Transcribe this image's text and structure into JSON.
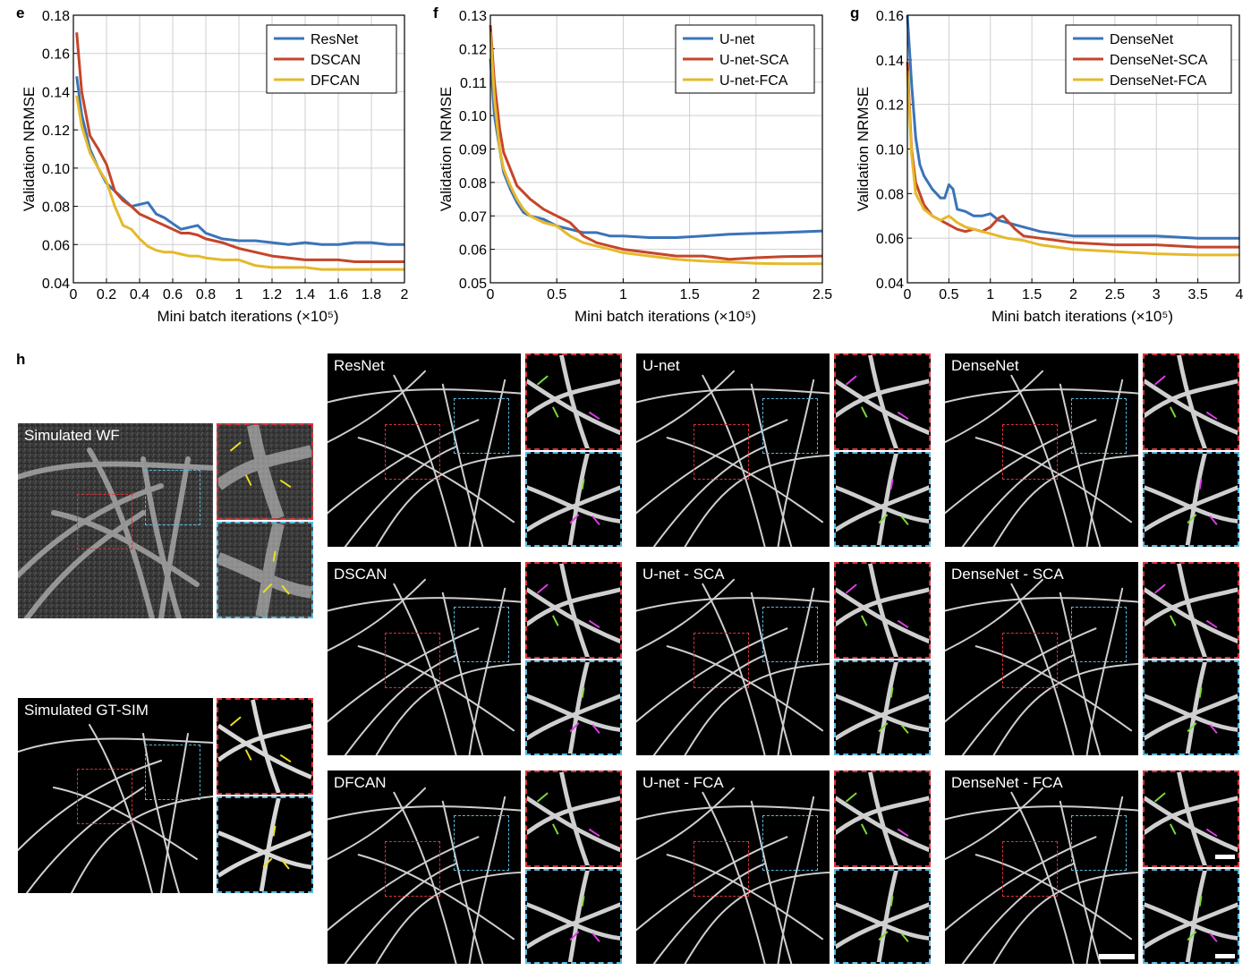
{
  "colors": {
    "blue": "#3a74b8",
    "red": "#c5452a",
    "yellow": "#e6b92b",
    "grid": "#cfcfcf"
  },
  "chart_data": [
    {
      "type": "line",
      "panel": "e",
      "xlabel": "Mini batch iterations (×10⁵)",
      "ylabel": "Validation NRMSE",
      "xlim": [
        0,
        2
      ],
      "ylim": [
        0.04,
        0.18
      ],
      "xticks": [
        0,
        0.2,
        0.4,
        0.6,
        0.8,
        1,
        1.2,
        1.4,
        1.6,
        1.8,
        2
      ],
      "xtick_labels": [
        "0",
        "0.2",
        "0.4",
        "0.6",
        "0.8",
        "1",
        "1.2",
        "1.4",
        "1.6",
        "1.8",
        "2"
      ],
      "yticks": [
        0.04,
        0.06,
        0.08,
        0.1,
        0.12,
        0.14,
        0.16,
        0.18
      ],
      "ytick_labels": [
        "0.04",
        "0.06",
        "0.08",
        "0.10",
        "0.12",
        "0.14",
        "0.16",
        "0.18"
      ],
      "grid": true,
      "legend": "top-right",
      "series": [
        {
          "name": "ResNet",
          "color": "blue",
          "x": [
            0.02,
            0.05,
            0.1,
            0.15,
            0.2,
            0.25,
            0.3,
            0.35,
            0.4,
            0.45,
            0.5,
            0.55,
            0.6,
            0.65,
            0.7,
            0.75,
            0.8,
            0.9,
            1.0,
            1.1,
            1.2,
            1.3,
            1.4,
            1.5,
            1.6,
            1.7,
            1.8,
            1.9,
            2.0
          ],
          "y": [
            0.148,
            0.128,
            0.11,
            0.1,
            0.092,
            0.088,
            0.084,
            0.08,
            0.081,
            0.082,
            0.076,
            0.074,
            0.071,
            0.068,
            0.069,
            0.07,
            0.066,
            0.063,
            0.062,
            0.062,
            0.061,
            0.06,
            0.061,
            0.06,
            0.06,
            0.061,
            0.061,
            0.06,
            0.06
          ]
        },
        {
          "name": "DSCAN",
          "color": "red",
          "x": [
            0.02,
            0.05,
            0.1,
            0.15,
            0.2,
            0.25,
            0.3,
            0.35,
            0.4,
            0.45,
            0.5,
            0.55,
            0.6,
            0.65,
            0.7,
            0.75,
            0.8,
            0.9,
            1.0,
            1.1,
            1.2,
            1.3,
            1.4,
            1.5,
            1.6,
            1.7,
            1.8,
            1.9,
            2.0
          ],
          "y": [
            0.171,
            0.14,
            0.117,
            0.11,
            0.102,
            0.088,
            0.083,
            0.08,
            0.076,
            0.074,
            0.072,
            0.07,
            0.068,
            0.066,
            0.066,
            0.065,
            0.063,
            0.061,
            0.058,
            0.056,
            0.054,
            0.053,
            0.052,
            0.052,
            0.052,
            0.051,
            0.051,
            0.051,
            0.051
          ]
        },
        {
          "name": "DFCAN",
          "color": "yellow",
          "x": [
            0.02,
            0.05,
            0.1,
            0.15,
            0.2,
            0.25,
            0.3,
            0.35,
            0.4,
            0.45,
            0.5,
            0.55,
            0.6,
            0.65,
            0.7,
            0.75,
            0.8,
            0.9,
            1.0,
            1.1,
            1.2,
            1.3,
            1.4,
            1.5,
            1.6,
            1.7,
            1.8,
            1.9,
            2.0
          ],
          "y": [
            0.138,
            0.122,
            0.108,
            0.1,
            0.093,
            0.08,
            0.07,
            0.068,
            0.063,
            0.059,
            0.057,
            0.056,
            0.056,
            0.055,
            0.054,
            0.054,
            0.053,
            0.052,
            0.052,
            0.049,
            0.048,
            0.048,
            0.048,
            0.047,
            0.047,
            0.047,
            0.047,
            0.047,
            0.047
          ]
        }
      ]
    },
    {
      "type": "line",
      "panel": "f",
      "xlabel": "Mini batch iterations (×10⁵)",
      "ylabel": "Validation NRMSE",
      "xlim": [
        0,
        2.5
      ],
      "ylim": [
        0.05,
        0.13
      ],
      "xticks": [
        0,
        0.5,
        1,
        1.5,
        2,
        2.5
      ],
      "xtick_labels": [
        "0",
        "0.5",
        "1",
        "1.5",
        "2",
        "2.5"
      ],
      "yticks": [
        0.05,
        0.06,
        0.07,
        0.08,
        0.09,
        0.1,
        0.11,
        0.12,
        0.13
      ],
      "ytick_labels": [
        "0.05",
        "0.06",
        "0.07",
        "0.08",
        "0.09",
        "0.10",
        "0.11",
        "0.12",
        "0.13"
      ],
      "grid": true,
      "legend": "top-right",
      "series": [
        {
          "name": "U-net",
          "color": "blue",
          "x": [
            0.0,
            0.03,
            0.07,
            0.1,
            0.15,
            0.2,
            0.25,
            0.3,
            0.4,
            0.5,
            0.6,
            0.7,
            0.8,
            0.9,
            1.0,
            1.2,
            1.4,
            1.6,
            1.8,
            2.0,
            2.2,
            2.5
          ],
          "y": [
            0.117,
            0.1,
            0.09,
            0.083,
            0.078,
            0.074,
            0.071,
            0.07,
            0.069,
            0.067,
            0.066,
            0.065,
            0.065,
            0.064,
            0.064,
            0.0635,
            0.0635,
            0.064,
            0.0645,
            0.0648,
            0.065,
            0.0655
          ]
        },
        {
          "name": "U-net-SCA",
          "color": "red",
          "x": [
            0.0,
            0.03,
            0.07,
            0.1,
            0.15,
            0.2,
            0.25,
            0.3,
            0.4,
            0.5,
            0.55,
            0.6,
            0.7,
            0.8,
            0.9,
            1.0,
            1.2,
            1.4,
            1.6,
            1.8,
            2.0,
            2.2,
            2.5
          ],
          "y": [
            0.127,
            0.11,
            0.096,
            0.089,
            0.084,
            0.079,
            0.077,
            0.075,
            0.072,
            0.07,
            0.069,
            0.068,
            0.064,
            0.062,
            0.061,
            0.06,
            0.059,
            0.058,
            0.058,
            0.057,
            0.0575,
            0.0578,
            0.058
          ]
        },
        {
          "name": "U-net-FCA",
          "color": "yellow",
          "x": [
            0.0,
            0.03,
            0.07,
            0.1,
            0.15,
            0.2,
            0.25,
            0.3,
            0.4,
            0.5,
            0.6,
            0.7,
            0.8,
            0.9,
            1.0,
            1.2,
            1.4,
            1.6,
            1.8,
            2.0,
            2.2,
            2.5
          ],
          "y": [
            0.125,
            0.105,
            0.09,
            0.084,
            0.079,
            0.075,
            0.072,
            0.07,
            0.068,
            0.067,
            0.064,
            0.062,
            0.061,
            0.06,
            0.059,
            0.058,
            0.057,
            0.0565,
            0.0562,
            0.0558,
            0.0557,
            0.0557
          ]
        }
      ]
    },
    {
      "type": "line",
      "panel": "g",
      "xlabel": "Mini batch iterations (×10⁵)",
      "ylabel": "Validation NRMSE",
      "xlim": [
        0,
        4
      ],
      "ylim": [
        0.04,
        0.16
      ],
      "xticks": [
        0,
        0.5,
        1,
        1.5,
        2,
        2.5,
        3,
        3.5,
        4
      ],
      "xtick_labels": [
        "0",
        "0.5",
        "1",
        "1.5",
        "2",
        "2.5",
        "3",
        "3.5",
        "4"
      ],
      "yticks": [
        0.04,
        0.06,
        0.08,
        0.1,
        0.12,
        0.14,
        0.16
      ],
      "ytick_labels": [
        "0.04",
        "0.06",
        "0.08",
        "0.10",
        "0.12",
        "0.14",
        "0.16"
      ],
      "grid": true,
      "legend": "top-right",
      "series": [
        {
          "name": "DenseNet",
          "color": "blue",
          "x": [
            0.0,
            0.05,
            0.1,
            0.15,
            0.2,
            0.3,
            0.4,
            0.45,
            0.5,
            0.55,
            0.6,
            0.7,
            0.8,
            0.9,
            1.0,
            1.1,
            1.2,
            1.4,
            1.6,
            1.8,
            2.0,
            2.5,
            3.0,
            3.5,
            4.0
          ],
          "y": [
            0.16,
            0.13,
            0.105,
            0.093,
            0.088,
            0.082,
            0.078,
            0.078,
            0.084,
            0.082,
            0.073,
            0.072,
            0.07,
            0.07,
            0.071,
            0.068,
            0.067,
            0.065,
            0.063,
            0.062,
            0.061,
            0.061,
            0.061,
            0.06,
            0.06
          ]
        },
        {
          "name": "DenseNet-SCA",
          "color": "red",
          "x": [
            0.0,
            0.05,
            0.1,
            0.2,
            0.3,
            0.4,
            0.5,
            0.6,
            0.7,
            0.8,
            0.9,
            1.0,
            1.1,
            1.15,
            1.2,
            1.3,
            1.4,
            1.6,
            1.8,
            2.0,
            2.5,
            3.0,
            3.5,
            4.0
          ],
          "y": [
            0.139,
            0.1,
            0.085,
            0.075,
            0.07,
            0.068,
            0.066,
            0.064,
            0.063,
            0.064,
            0.063,
            0.065,
            0.069,
            0.07,
            0.068,
            0.064,
            0.061,
            0.06,
            0.059,
            0.058,
            0.057,
            0.057,
            0.056,
            0.056
          ]
        },
        {
          "name": "DenseNet-FCA",
          "color": "yellow",
          "x": [
            0.0,
            0.05,
            0.1,
            0.2,
            0.3,
            0.4,
            0.5,
            0.6,
            0.7,
            0.8,
            0.9,
            1.0,
            1.1,
            1.2,
            1.4,
            1.6,
            1.8,
            2.0,
            2.5,
            3.0,
            3.5,
            4.0
          ],
          "y": [
            0.135,
            0.098,
            0.08,
            0.073,
            0.07,
            0.068,
            0.07,
            0.067,
            0.065,
            0.064,
            0.063,
            0.062,
            0.061,
            0.06,
            0.059,
            0.057,
            0.056,
            0.055,
            0.054,
            0.053,
            0.0525,
            0.0525
          ]
        }
      ]
    }
  ],
  "image_panel_letter": "h",
  "left_images": [
    {
      "label": "Simulated WF",
      "arrows": "yellow"
    },
    {
      "label": "Simulated GT-SIM",
      "arrows": "yellow"
    }
  ],
  "grid_images": [
    {
      "label": "ResNet"
    },
    {
      "label": "U-net"
    },
    {
      "label": "DenseNet"
    },
    {
      "label": "DSCAN"
    },
    {
      "label": "U-net - SCA"
    },
    {
      "label": "DenseNet - SCA"
    },
    {
      "label": "DFCAN"
    },
    {
      "label": "U-net - FCA"
    },
    {
      "label": "DenseNet - FCA"
    }
  ]
}
